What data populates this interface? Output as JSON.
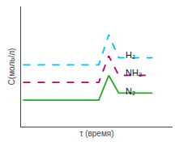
{
  "chart_data": {
    "type": "line",
    "x_label": "τ (время)",
    "y_label": "C(моль/л)",
    "series": [
      {
        "name": "H₂",
        "color": "#00bfff",
        "line_style": "dashed",
        "x": [
          0.0,
          3.8,
          4.3,
          4.8,
          6.5
        ],
        "values": [
          3.5,
          3.5,
          5.2,
          3.9,
          3.9
        ]
      },
      {
        "name": "NH₃",
        "color": "#bb006e",
        "line_style": "dashed",
        "x": [
          0.0,
          3.8,
          4.3,
          4.8,
          6.5
        ],
        "values": [
          2.5,
          2.5,
          4.0,
          2.9,
          2.9
        ]
      },
      {
        "name": "N₂",
        "color": "#22aa22",
        "line_style": "solid",
        "x": [
          0.0,
          3.8,
          4.3,
          4.8,
          6.5
        ],
        "values": [
          1.5,
          1.5,
          2.9,
          1.9,
          1.9
        ]
      }
    ],
    "annotations": [
      {
        "text": "H₂",
        "x": 5.05,
        "y": 4.05
      },
      {
        "text": "NH₃",
        "x": 5.05,
        "y": 3.05
      },
      {
        "text": "N₂",
        "x": 5.05,
        "y": 2.0
      }
    ],
    "xlim": [
      -0.1,
      7.5
    ],
    "ylim": [
      0.0,
      6.8
    ],
    "xticks": [],
    "yticks": [],
    "tick_labels": false,
    "grid": false
  }
}
